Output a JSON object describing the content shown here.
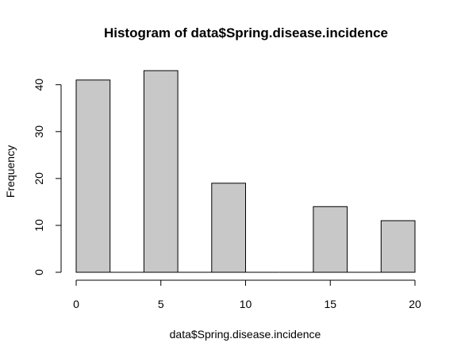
{
  "chart_data": {
    "type": "bar",
    "title": "Histogram of data$Spring.disease.incidence",
    "xlabel": "data$Spring.disease.incidence",
    "ylabel": "Frequency",
    "bins": [
      {
        "start": 0,
        "end": 2,
        "count": 41
      },
      {
        "start": 2,
        "end": 4,
        "count": 0
      },
      {
        "start": 4,
        "end": 6,
        "count": 43
      },
      {
        "start": 6,
        "end": 8,
        "count": 0
      },
      {
        "start": 8,
        "end": 10,
        "count": 19
      },
      {
        "start": 10,
        "end": 12,
        "count": 0
      },
      {
        "start": 12,
        "end": 14,
        "count": 0
      },
      {
        "start": 14,
        "end": 16,
        "count": 14
      },
      {
        "start": 16,
        "end": 18,
        "count": 0
      },
      {
        "start": 18,
        "end": 20,
        "count": 11
      }
    ],
    "xlim": [
      0,
      20
    ],
    "ylim": [
      0,
      43
    ],
    "xticks": [
      0,
      5,
      10,
      15,
      20
    ],
    "yticks": [
      0,
      10,
      20,
      30,
      40
    ],
    "bar_fill": "#c8c8c8",
    "bar_stroke": "#000000",
    "grid": false
  }
}
